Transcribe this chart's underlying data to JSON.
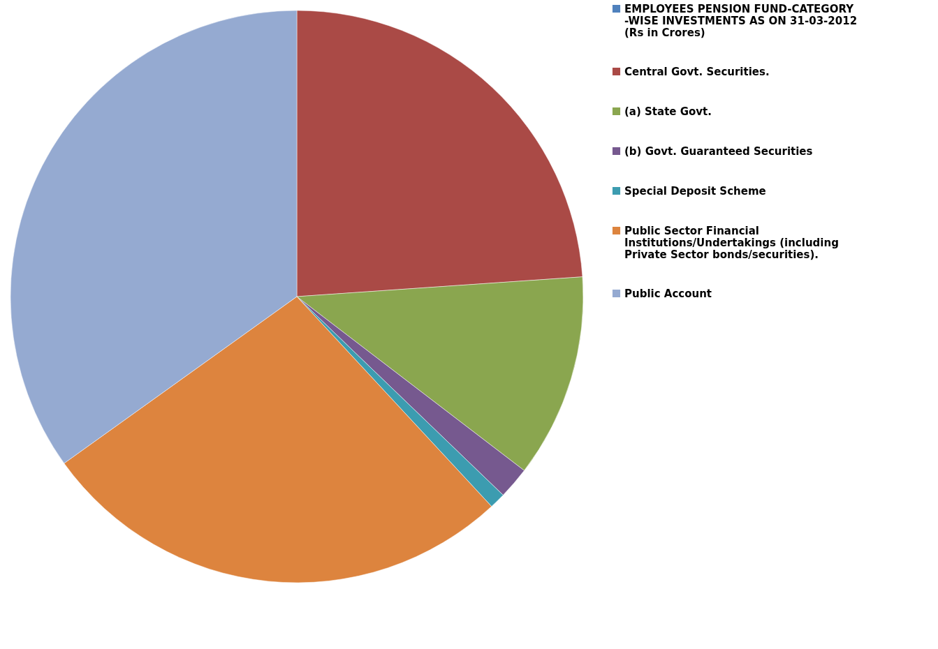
{
  "chart_data": {
    "type": "pie",
    "categories": [
      "EMPLOYEES PENSION FUND-CATEGORY -WISE INVESTMENTS AS ON 31-03-2012  (Rs in Crores)",
      "Central Govt. Securities.",
      "(a) State Govt.",
      "(b) Govt. Guaranteed Securities",
      "Special  Deposit Scheme",
      "Public Sector Financial Institutions/Undertakings (including Private Sector bonds/securities).",
      "Public Account"
    ],
    "values": [
      0,
      23.9,
      11.5,
      1.8,
      0.9,
      27.0,
      34.9
    ],
    "colors": [
      "#4f81bd",
      "#aa4a46",
      "#8aa64f",
      "#76598f",
      "#3c9cb0",
      "#dd843e",
      "#95aad1"
    ],
    "legend": "right"
  }
}
